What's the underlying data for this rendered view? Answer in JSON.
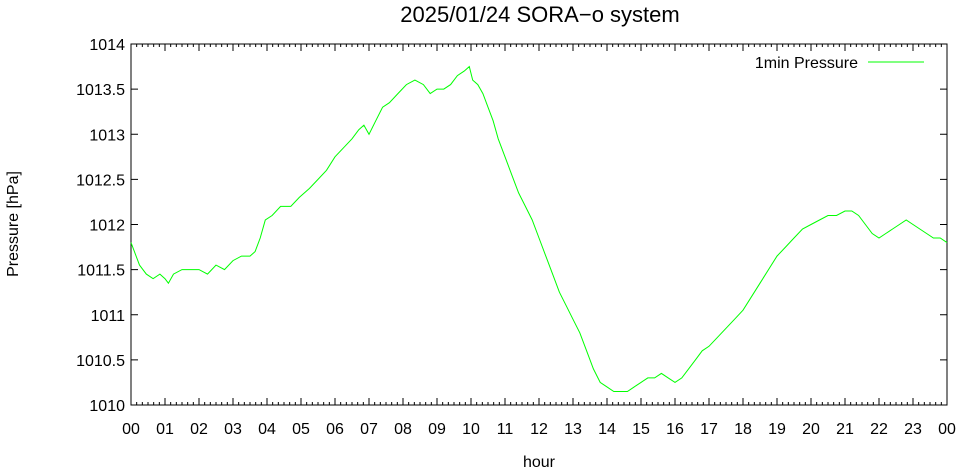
{
  "chart_data": {
    "type": "line",
    "title": "2025/01/24 SORA−o system",
    "xlabel": "hour",
    "ylabel": "Pressure [hPa]",
    "xlim": [
      0,
      24
    ],
    "ylim": [
      1010,
      1014
    ],
    "x_ticks": [
      "00",
      "01",
      "02",
      "03",
      "04",
      "05",
      "06",
      "07",
      "08",
      "09",
      "10",
      "11",
      "12",
      "13",
      "14",
      "15",
      "16",
      "17",
      "18",
      "19",
      "20",
      "21",
      "22",
      "23",
      "00"
    ],
    "y_ticks": [
      "1010",
      "1010.5",
      "1011",
      "1011.5",
      "1012",
      "1012.5",
      "1013",
      "1013.5",
      "1014"
    ],
    "grid": false,
    "legend_position": "top-right",
    "series_color": "#00ff00",
    "series": [
      {
        "name": "1min Pressure",
        "x": [
          0.0,
          0.1,
          0.25,
          0.45,
          0.65,
          0.85,
          1.0,
          1.1,
          1.25,
          1.5,
          1.75,
          2.0,
          2.25,
          2.5,
          2.75,
          3.0,
          3.25,
          3.5,
          3.65,
          3.8,
          3.95,
          4.15,
          4.4,
          4.7,
          4.95,
          5.25,
          5.5,
          5.75,
          6.0,
          6.25,
          6.5,
          6.7,
          6.85,
          7.0,
          7.2,
          7.4,
          7.6,
          7.85,
          8.1,
          8.35,
          8.6,
          8.8,
          9.0,
          9.2,
          9.4,
          9.6,
          9.8,
          9.95,
          10.05,
          10.2,
          10.35,
          10.5,
          10.65,
          10.8,
          11.0,
          11.2,
          11.4,
          11.6,
          11.8,
          12.0,
          12.2,
          12.4,
          12.6,
          12.8,
          13.0,
          13.2,
          13.4,
          13.6,
          13.8,
          14.0,
          14.2,
          14.4,
          14.6,
          14.8,
          15.0,
          15.2,
          15.4,
          15.6,
          15.8,
          16.0,
          16.2,
          16.4,
          16.6,
          16.8,
          17.0,
          17.25,
          17.5,
          17.75,
          18.0,
          18.25,
          18.5,
          18.75,
          19.0,
          19.25,
          19.5,
          19.75,
          20.0,
          20.25,
          20.5,
          20.75,
          21.0,
          21.2,
          21.4,
          21.6,
          21.8,
          22.0,
          22.2,
          22.4,
          22.6,
          22.8,
          23.0,
          23.2,
          23.4,
          23.6,
          23.8,
          24.0
        ],
        "y": [
          1011.8,
          1011.7,
          1011.55,
          1011.45,
          1011.4,
          1011.45,
          1011.4,
          1011.35,
          1011.45,
          1011.5,
          1011.5,
          1011.5,
          1011.45,
          1011.55,
          1011.5,
          1011.6,
          1011.65,
          1011.65,
          1011.7,
          1011.85,
          1012.05,
          1012.1,
          1012.2,
          1012.2,
          1012.3,
          1012.4,
          1012.5,
          1012.6,
          1012.75,
          1012.85,
          1012.95,
          1013.05,
          1013.1,
          1013.0,
          1013.15,
          1013.3,
          1013.35,
          1013.45,
          1013.55,
          1013.6,
          1013.55,
          1013.45,
          1013.5,
          1013.5,
          1013.55,
          1013.65,
          1013.7,
          1013.75,
          1013.6,
          1013.55,
          1013.45,
          1013.3,
          1013.15,
          1012.95,
          1012.75,
          1012.55,
          1012.35,
          1012.2,
          1012.05,
          1011.85,
          1011.65,
          1011.45,
          1011.25,
          1011.1,
          1010.95,
          1010.8,
          1010.6,
          1010.4,
          1010.25,
          1010.2,
          1010.15,
          1010.15,
          1010.15,
          1010.2,
          1010.25,
          1010.3,
          1010.3,
          1010.35,
          1010.3,
          1010.25,
          1010.3,
          1010.4,
          1010.5,
          1010.6,
          1010.65,
          1010.75,
          1010.85,
          1010.95,
          1011.05,
          1011.2,
          1011.35,
          1011.5,
          1011.65,
          1011.75,
          1011.85,
          1011.95,
          1012.0,
          1012.05,
          1012.1,
          1012.1,
          1012.15,
          1012.15,
          1012.1,
          1012.0,
          1011.9,
          1011.85,
          1011.9,
          1011.95,
          1012.0,
          1012.05,
          1012.0,
          1011.95,
          1011.9,
          1011.85,
          1011.85,
          1011.8
        ]
      }
    ]
  }
}
